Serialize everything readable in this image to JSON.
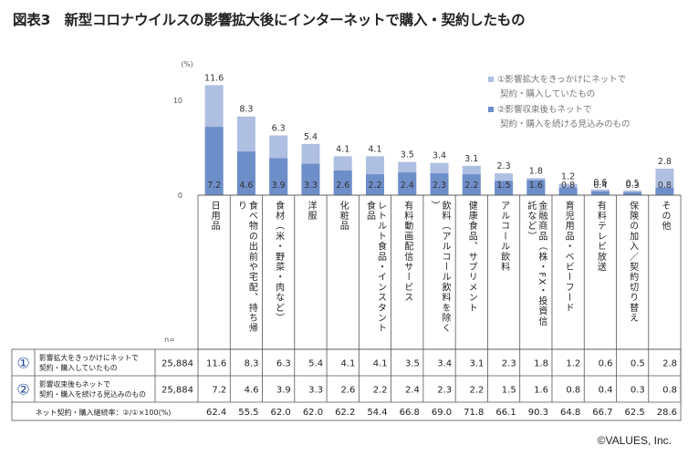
{
  "title": "図表3　新型コロナウイルスの影響拡大後にインターネットで購入・契約したもの",
  "copyright": "©VALUES, Inc.",
  "chart_data": {
    "type": "bar",
    "yunit": "(%)",
    "ylim": [
      0,
      12
    ],
    "yticks": [
      0,
      10
    ],
    "categories": [
      "日用品",
      "食べ物の出前や宅配、持ち帰り",
      "食材（米・野菜・肉など）",
      "洋服",
      "化粧品",
      "レトルト食品・インスタント食品",
      "有料動画配信サービス",
      "飲料（アルコール飲料を除く）",
      "健康食品、サプリメント",
      "アルコール飲料",
      "金融商品（株・FX・投資信託など）",
      "育児用品・ベビーフード",
      "有料テレビ放送",
      "保険の加入／契約切り替え",
      "その他"
    ],
    "series": [
      {
        "name": "①影響拡大をきっかけにネットで契約・購入していたもの",
        "short": "①",
        "row_label": "影響拡大をきっかけにネットで契約・購入していたもの",
        "n": "25,884",
        "color": "#aebfe2",
        "values": [
          11.6,
          8.3,
          6.3,
          5.4,
          4.1,
          4.1,
          3.5,
          3.4,
          3.1,
          2.3,
          1.8,
          1.2,
          0.6,
          0.5,
          2.8
        ]
      },
      {
        "name": "②影響収束後もネットで契約・購入を続ける見込みのもの",
        "short": "②",
        "row_label": "影響収束後もネットで契約・購入を続ける見込みのもの",
        "n": "25,884",
        "color": "#6e8ec9",
        "values": [
          7.2,
          4.6,
          3.9,
          3.3,
          2.6,
          2.2,
          2.4,
          2.3,
          2.2,
          1.5,
          1.6,
          0.8,
          0.4,
          0.3,
          0.8
        ]
      }
    ],
    "legend": [
      "①影響拡大をきっかけにネットで",
      "契約・購入していたもの",
      "②影響収束後もネットで",
      "契約・購入を続ける見込みのもの"
    ],
    "n_header": "n=",
    "rate": {
      "label": "ネット契約・購入継続率：②/①×100(%)",
      "values": [
        62.4,
        55.5,
        62.0,
        62.0,
        62.2,
        54.4,
        66.8,
        69.0,
        71.8,
        66.1,
        90.3,
        64.8,
        66.7,
        62.5,
        28.6
      ]
    }
  }
}
